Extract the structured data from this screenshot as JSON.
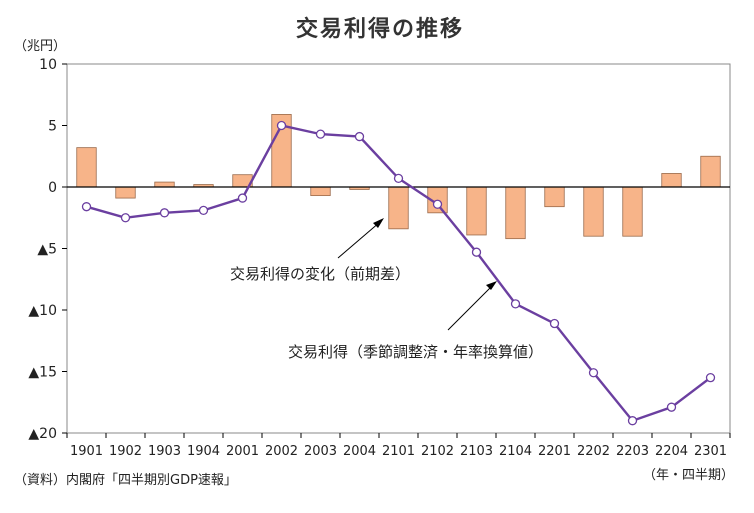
{
  "title": "交易利得の推移",
  "unit_label": "（兆円）",
  "x_unit_label": "（年・四半期）",
  "source": "（資料）内閣府「四半期別GDP速報」",
  "annotations": [
    {
      "key": "bars",
      "text": "交易利得の変化（前期差）"
    },
    {
      "key": "line",
      "text": "交易利得（季節調整済・年率換算値）"
    }
  ],
  "colors": {
    "bar_fill": "#F7B489",
    "bar_stroke": "#9A6A4A",
    "line": "#6B3FA0",
    "marker_fill": "#ffffff",
    "axis": "#000000"
  },
  "chart_data": {
    "type": "bar",
    "categories": [
      "1901",
      "1902",
      "1903",
      "1904",
      "2001",
      "2002",
      "2003",
      "2004",
      "2101",
      "2102",
      "2103",
      "2104",
      "2201",
      "2202",
      "2203",
      "2204",
      "2301"
    ],
    "ylim": [
      -20,
      10
    ],
    "yticks": [
      {
        "value": 10,
        "label": "10"
      },
      {
        "value": 5,
        "label": "5"
      },
      {
        "value": 0,
        "label": "0"
      },
      {
        "value": -5,
        "label": "▲5"
      },
      {
        "value": -10,
        "label": "▲10"
      },
      {
        "value": -15,
        "label": "▲15"
      },
      {
        "value": -20,
        "label": "▲20"
      }
    ],
    "series": [
      {
        "name": "交易利得の変化（前期差）",
        "kind": "bar",
        "values": [
          3.2,
          -0.9,
          0.4,
          0.2,
          1.0,
          5.9,
          -0.7,
          -0.2,
          -3.4,
          -2.1,
          -3.9,
          -4.2,
          -1.6,
          -4.0,
          -4.0,
          1.1,
          2.5
        ]
      },
      {
        "name": "交易利得（季節調整済・年率換算値）",
        "kind": "line",
        "values": [
          -1.6,
          -2.5,
          -2.1,
          -1.9,
          -0.9,
          5.0,
          4.3,
          4.1,
          0.7,
          -1.4,
          -5.3,
          -9.5,
          -11.1,
          -15.1,
          -19.0,
          -17.9,
          -15.5
        ]
      }
    ],
    "grid": false,
    "legend": "annotations-in-plot"
  }
}
